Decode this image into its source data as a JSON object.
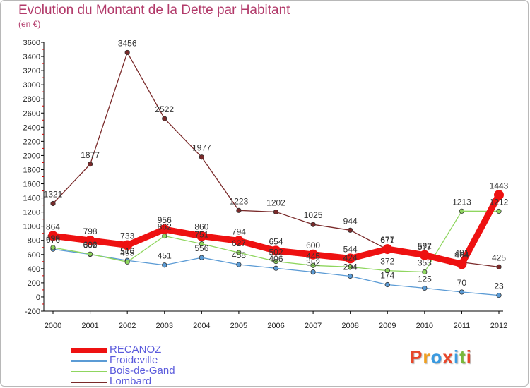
{
  "header": {
    "title": "Evolution du Montant de la Dette par Habitant",
    "subtitle": "(en €)"
  },
  "logo": {
    "letters": [
      "P",
      "r",
      "o",
      "x",
      "i",
      "t",
      "i"
    ],
    "colors": [
      "#e8472b",
      "#f0a020",
      "#3a9ae0",
      "#e8472b",
      "#3a9ae0",
      "#7ab83a",
      "#e8472b"
    ]
  },
  "chart_data": {
    "type": "line",
    "x": [
      "2000",
      "2001",
      "2002",
      "2003",
      "2004",
      "2005",
      "2006",
      "2007",
      "2008",
      "2009",
      "2010",
      "2011",
      "2012"
    ],
    "ylim": [
      -200,
      3600
    ],
    "yticks": [
      -200,
      0,
      200,
      400,
      600,
      800,
      1000,
      1200,
      1400,
      1600,
      1800,
      2000,
      2200,
      2400,
      2600,
      2800,
      3000,
      3200,
      3400,
      3600
    ],
    "grid": false,
    "legend_position": "bottom-left",
    "series": [
      {
        "name": "RECANOZ",
        "color": "#ee1111",
        "values": [
          864,
          798,
          733,
          956,
          860,
          794,
          654,
          600,
          544,
          677,
          592,
          464,
          1443
        ],
        "labels": [
          "864",
          "798",
          "733",
          "956",
          "860",
          "794",
          "654",
          "600",
          "544",
          "677",
          "592",
          "464",
          "1443"
        ]
      },
      {
        "name": "Froideville",
        "color": "#5b9bd5",
        "values": [
          676,
          602,
          516,
          451,
          556,
          458,
          406,
          352,
          294,
          174,
          125,
          70,
          23
        ],
        "labels": [
          "676",
          "602",
          "516",
          "451",
          "556",
          "458",
          "406",
          "352",
          "294",
          "174",
          "125",
          "70",
          "23"
        ]
      },
      {
        "name": "Bois-de-Gand",
        "color": "#8fd65f",
        "values": [
          699,
          606,
          495,
          862,
          751,
          627,
          502,
          445,
          424,
          372,
          353,
          1213,
          1212
        ],
        "labels": [
          "699",
          "606",
          "495",
          "862",
          "751",
          "627",
          "502",
          "445",
          "424",
          "372",
          "353",
          "1213",
          "1212"
        ]
      },
      {
        "name": "Lombard",
        "color": "#7a2a2a",
        "values": [
          1321,
          1877,
          3456,
          2522,
          1977,
          1223,
          1202,
          1025,
          944,
          671,
          577,
          491,
          425
        ],
        "labels": [
          "1321",
          "1877",
          "3456",
          "2522",
          "1977",
          "1223",
          "1202",
          "1025",
          "944",
          "671",
          "577",
          "491",
          "425"
        ]
      }
    ]
  }
}
